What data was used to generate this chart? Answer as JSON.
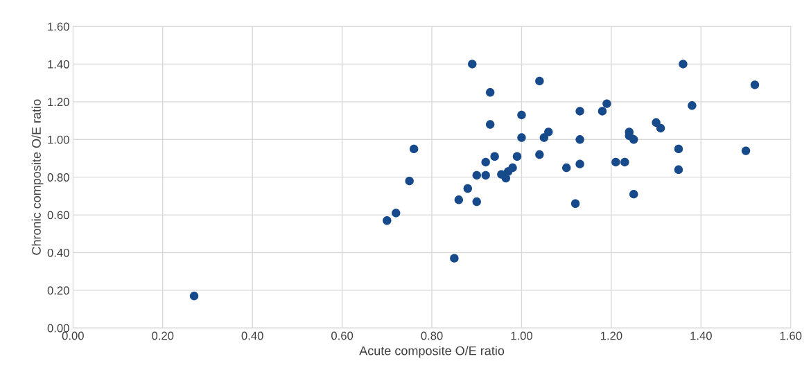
{
  "chart_data": {
    "type": "scatter",
    "xlabel": "Acute composite O/E ratio",
    "ylabel": "Chronic composite O/E ratio",
    "x": [
      0.27,
      0.85,
      0.89,
      0.93,
      0.93,
      0.76,
      0.94,
      0.92,
      0.9,
      0.92,
      0.955,
      0.965,
      0.75,
      0.88,
      0.86,
      0.9,
      0.72,
      0.7,
      1.36,
      1.52,
      1.04,
      1.38,
      1.19,
      1.18,
      1.0,
      1.13,
      1.3,
      1.31,
      1.06,
      1.05,
      1.0,
      1.13,
      1.24,
      1.24,
      1.25,
      1.35,
      1.5,
      0.99,
      1.04,
      1.21,
      1.23,
      1.13,
      1.1,
      1.35,
      0.98,
      0.97,
      1.25,
      1.12
    ],
    "values": [
      0.17,
      0.37,
      1.4,
      1.25,
      1.08,
      0.95,
      0.91,
      0.88,
      0.81,
      0.81,
      0.815,
      0.795,
      0.78,
      0.74,
      0.68,
      0.67,
      0.61,
      0.57,
      1.4,
      1.29,
      1.31,
      1.18,
      1.19,
      1.15,
      1.13,
      1.15,
      1.09,
      1.06,
      1.04,
      1.01,
      1.01,
      1.0,
      1.04,
      1.02,
      1.0,
      0.95,
      0.94,
      0.91,
      0.92,
      0.88,
      0.88,
      0.87,
      0.85,
      0.84,
      0.85,
      0.83,
      0.71,
      0.66
    ],
    "color": "#174a8b",
    "marker": "circle",
    "xlim": [
      0,
      1.6
    ],
    "ylim": [
      0,
      1.6
    ],
    "xticks": [
      {
        "value": 0,
        "label": "0.00"
      },
      {
        "value": 0.2,
        "label": "0.20"
      },
      {
        "value": 0.4,
        "label": "0.40"
      },
      {
        "value": 0.6,
        "label": "0.60"
      },
      {
        "value": 0.8,
        "label": "0.80"
      },
      {
        "value": 1.0,
        "label": "1.00"
      },
      {
        "value": 1.2,
        "label": "1.20"
      },
      {
        "value": 1.4,
        "label": "1.40"
      },
      {
        "value": 1.6,
        "label": "1.60"
      }
    ],
    "yticks": [
      {
        "value": 0,
        "label": "0.00"
      },
      {
        "value": 0.2,
        "label": "0.20"
      },
      {
        "value": 0.4,
        "label": "0.40"
      },
      {
        "value": 0.6,
        "label": "0.60"
      },
      {
        "value": 0.8,
        "label": "0.80"
      },
      {
        "value": 1.0,
        "label": "1.00"
      },
      {
        "value": 1.2,
        "label": "1.20"
      },
      {
        "value": 1.4,
        "label": "1.40"
      },
      {
        "value": 1.6,
        "label": "1.60"
      }
    ],
    "grid": true,
    "legend": false
  }
}
